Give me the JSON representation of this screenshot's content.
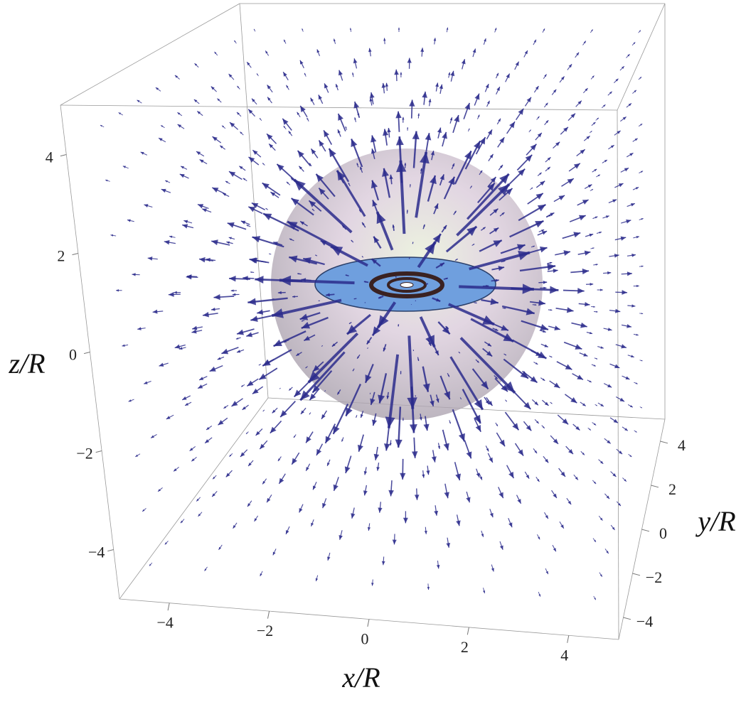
{
  "chart_data": {
    "type": "vector3d",
    "x_label": "x/R",
    "y_label": "y/R",
    "z_label": "z/R",
    "xlim": [
      -5,
      5
    ],
    "ylim": [
      -5,
      5
    ],
    "zlim": [
      -5,
      5
    ],
    "xticks": [
      {
        "value": -4,
        "label": "−4"
      },
      {
        "value": -2,
        "label": "−2"
      },
      0,
      2,
      4
    ],
    "yticks": [
      {
        "value": -4,
        "label": "−4"
      },
      {
        "value": -2,
        "label": "−2"
      },
      0,
      2,
      4
    ],
    "zticks": [
      {
        "value": -4,
        "label": "−4"
      },
      {
        "value": -2,
        "label": "−2"
      },
      0,
      2,
      4
    ],
    "color": "#2b2b8c"
  }
}
